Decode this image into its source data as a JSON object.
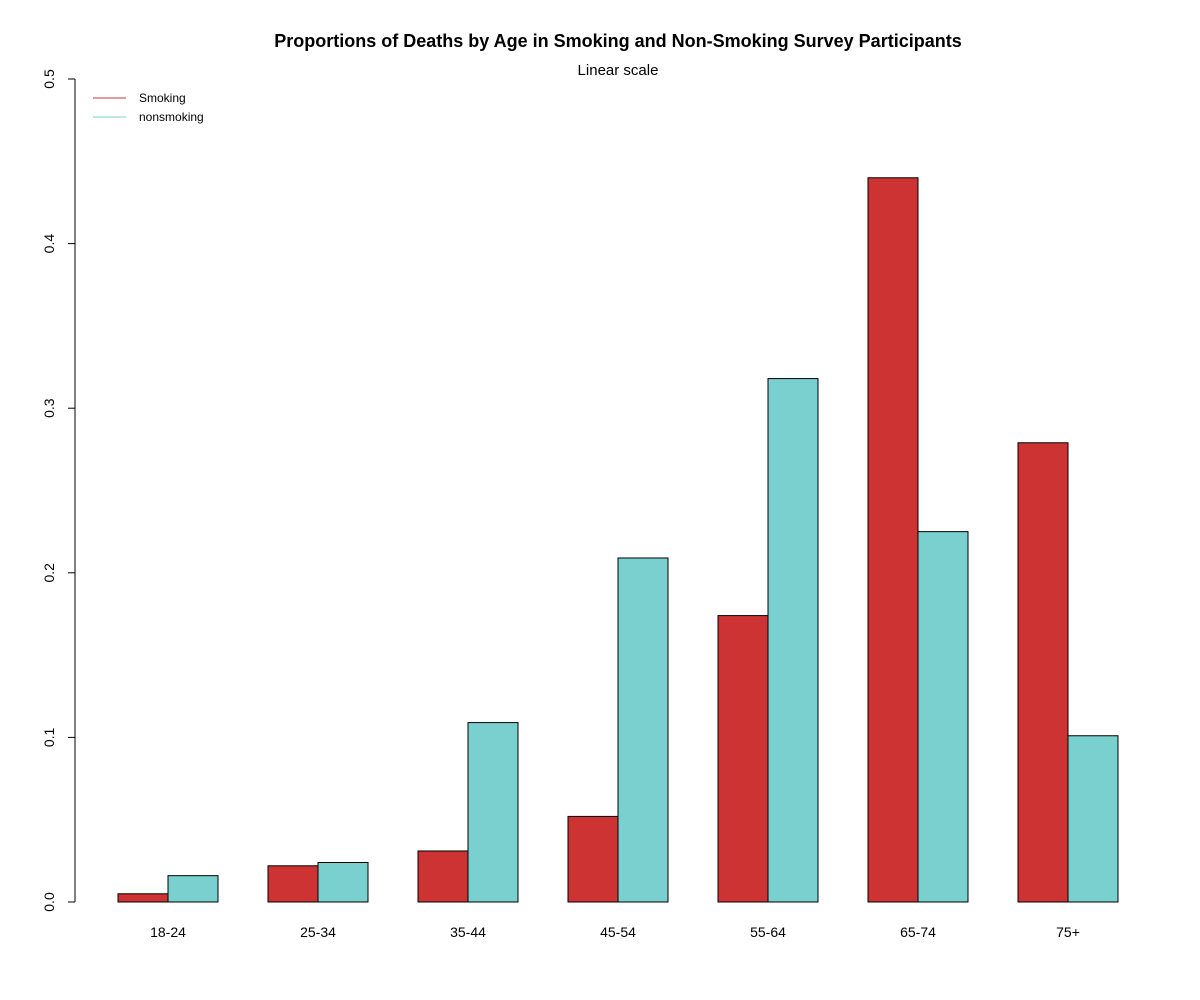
{
  "chart_data": {
    "type": "bar",
    "title": "Proportions of Deaths by Age in Smoking and Non-Smoking Survey Participants",
    "subtitle": "Linear scale",
    "xlabel": "",
    "ylabel": "",
    "categories": [
      "18-24",
      "25-34",
      "35-44",
      "45-54",
      "55-64",
      "65-74",
      "75+"
    ],
    "series": [
      {
        "name": "Smoking",
        "color": "#cd3333",
        "values": [
          0.005,
          0.022,
          0.031,
          0.052,
          0.174,
          0.44,
          0.279
        ]
      },
      {
        "name": "nonsmoking",
        "color": "#7acfcf",
        "values": [
          0.016,
          0.024,
          0.109,
          0.209,
          0.318,
          0.225,
          0.101
        ]
      }
    ],
    "ylim": [
      0,
      0.5
    ],
    "yticks": [
      "0.0",
      "0.1",
      "0.2",
      "0.3",
      "0.4",
      "0.5"
    ],
    "grid": false,
    "legend_position": "top-left"
  }
}
